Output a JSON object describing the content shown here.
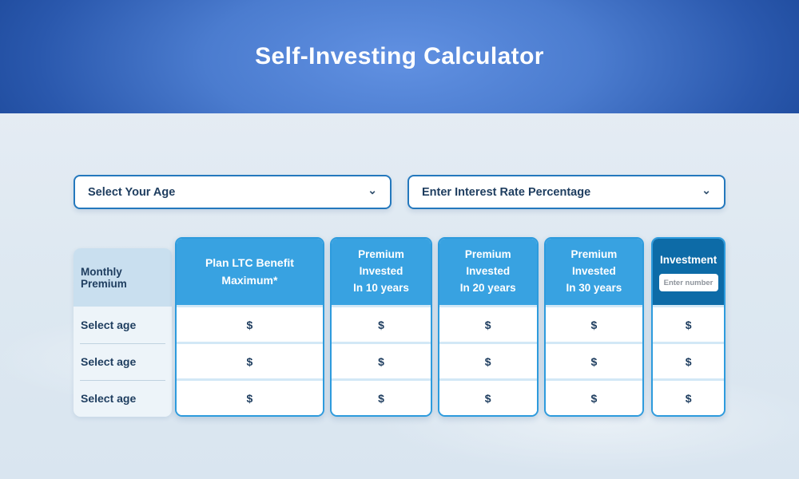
{
  "header": {
    "title": "Self-Investing Calculator"
  },
  "controls": {
    "age_select": {
      "label": "Select Your Age"
    },
    "interest_select": {
      "label": "Enter Interest Rate Percentage"
    }
  },
  "icons": {
    "chevron_down": "⌄"
  },
  "table": {
    "monthly_column": {
      "header": "Monthly Premium",
      "rows": [
        "Select age",
        "Select age",
        "Select age"
      ]
    },
    "ltc_column": {
      "title": "Plan LTC Benefit Maximum*",
      "cells": [
        "$",
        "$",
        "$"
      ]
    },
    "premium_columns": [
      {
        "line1": "Premium Invested",
        "line2": "In 10 years",
        "cells": [
          "$",
          "$",
          "$"
        ]
      },
      {
        "line1": "Premium Invested",
        "line2": "In 20 years",
        "cells": [
          "$",
          "$",
          "$"
        ]
      },
      {
        "line1": "Premium Invested",
        "line2": "In 30 years",
        "cells": [
          "$",
          "$",
          "$"
        ]
      }
    ],
    "investment_column": {
      "title": "Investment",
      "input_placeholder": "Enter number",
      "cells": [
        "$",
        "$",
        "$"
      ]
    }
  },
  "colors": {
    "header_gradient_center": "#6191e2",
    "header_gradient_edge": "#1c4899",
    "column_header_blue": "#38a2e1",
    "investment_header_blue": "#0d6ba7",
    "card_border_blue": "#2d9bdd",
    "monthly_header_bg": "#c9dfef",
    "monthly_body_bg": "#edf4f9",
    "text_navy": "#1e3d5f",
    "select_border_blue": "#2478bd",
    "page_background": "#dde8f2"
  }
}
